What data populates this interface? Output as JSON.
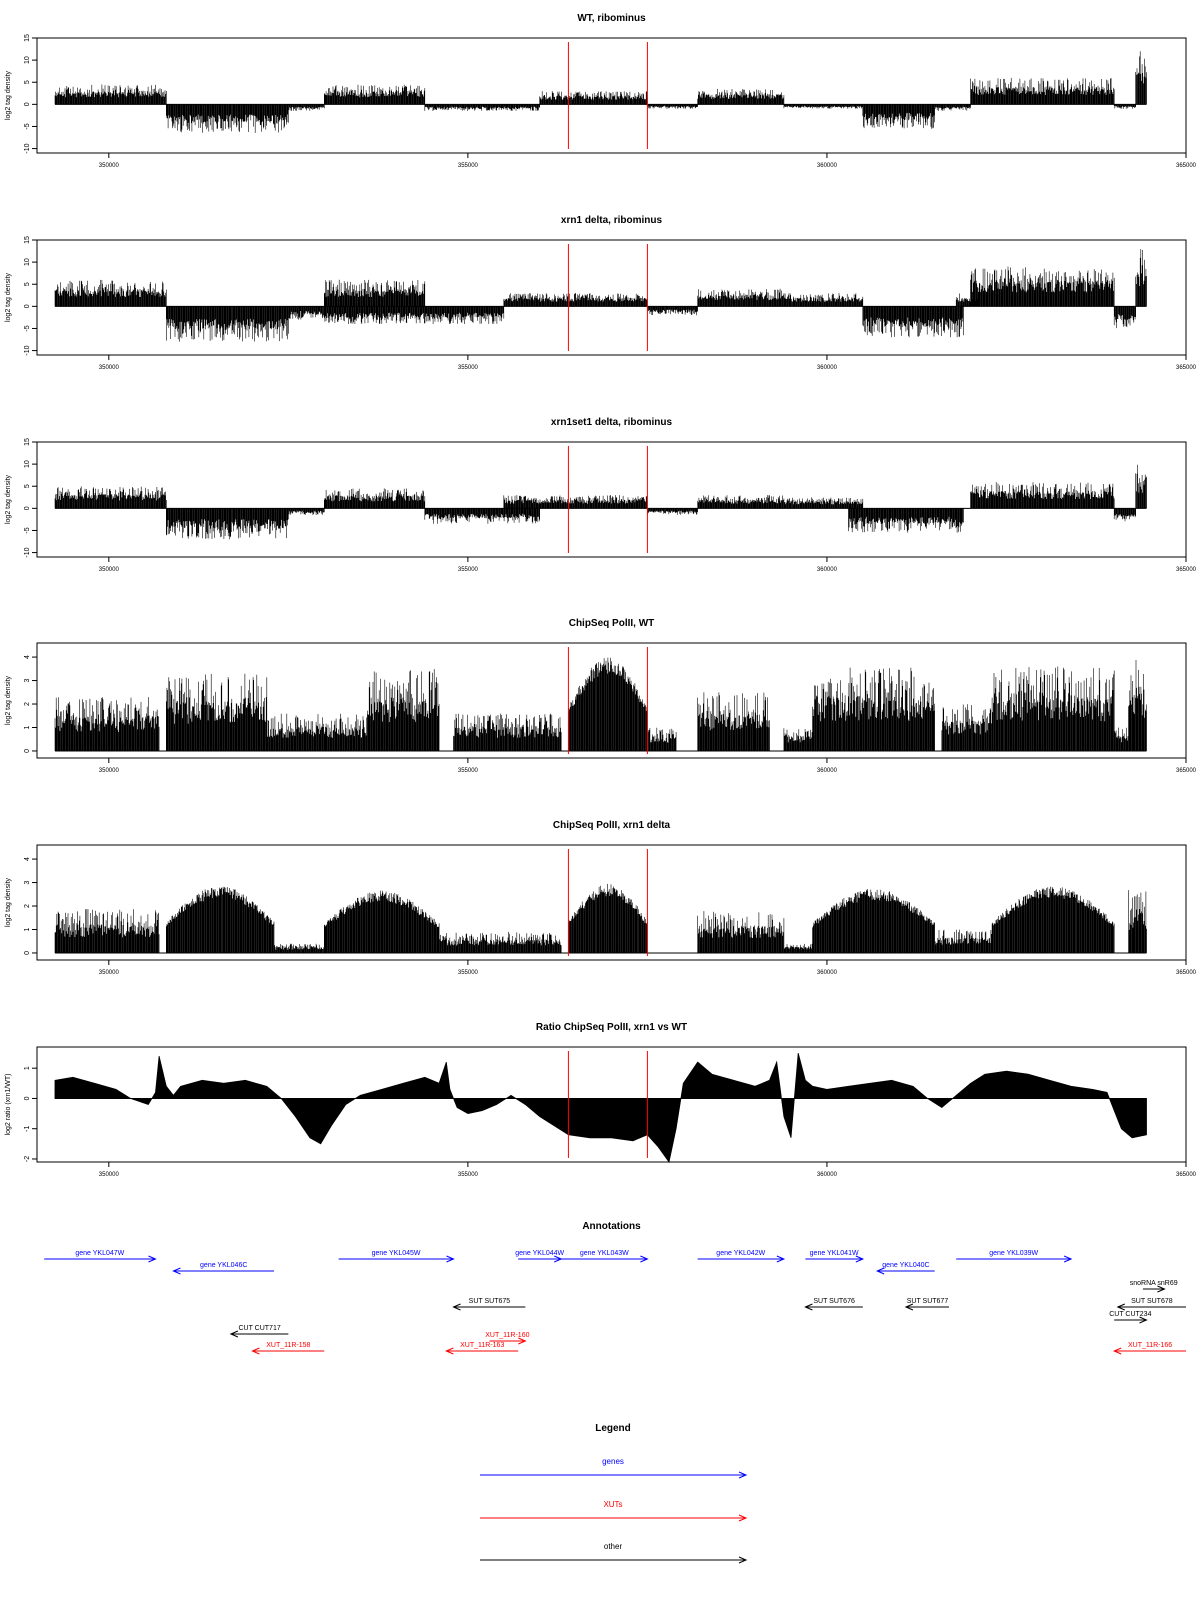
{
  "chart_data": [
    {
      "type": "bar",
      "title": "WT, ribominus",
      "ylabel": "log2 tag density",
      "xlim": [
        349000,
        365000
      ],
      "ylim": [
        -11,
        15
      ],
      "yticks": [
        -10,
        -5,
        0,
        5,
        10,
        15
      ],
      "xticks": [
        350000,
        355000,
        360000,
        365000
      ],
      "markers_x": [
        356400,
        357500
      ],
      "segments": [
        {
          "x0": 349250,
          "x1": 350800,
          "strand": "+",
          "peak": 4.5
        },
        {
          "x0": 350800,
          "x1": 352500,
          "strand": "-",
          "peak": 6.5
        },
        {
          "x0": 352500,
          "x1": 353000,
          "strand": "-",
          "peak": 1.5
        },
        {
          "x0": 353000,
          "x1": 354400,
          "strand": "+",
          "peak": 4.5
        },
        {
          "x0": 354400,
          "x1": 356000,
          "strand": "-",
          "peak": 1.5
        },
        {
          "x0": 356000,
          "x1": 357500,
          "strand": "+",
          "peak": 3.0
        },
        {
          "x0": 357500,
          "x1": 358200,
          "strand": "-",
          "peak": 1.0
        },
        {
          "x0": 358200,
          "x1": 359400,
          "strand": "+",
          "peak": 3.5
        },
        {
          "x0": 359400,
          "x1": 360500,
          "strand": "-",
          "peak": 1.0
        },
        {
          "x0": 360500,
          "x1": 361500,
          "strand": "-",
          "peak": 5.5
        },
        {
          "x0": 361500,
          "x1": 362000,
          "strand": "-",
          "peak": 1.5
        },
        {
          "x0": 362000,
          "x1": 364000,
          "strand": "+",
          "peak": 6.0
        },
        {
          "x0": 364000,
          "x1": 364300,
          "strand": "-",
          "peak": 1.0
        },
        {
          "x0": 364300,
          "x1": 364450,
          "strand": "+",
          "peak": 12.5
        }
      ]
    },
    {
      "type": "bar",
      "title": "xrn1 delta, ribominus",
      "ylabel": "log2 tag density",
      "xlim": [
        349000,
        365000
      ],
      "ylim": [
        -11,
        15
      ],
      "yticks": [
        -10,
        -5,
        0,
        5,
        10,
        15
      ],
      "xticks": [
        350000,
        355000,
        360000,
        365000
      ],
      "markers_x": [
        356400,
        357500
      ],
      "segments": [
        {
          "x0": 349250,
          "x1": 350800,
          "strand": "+",
          "peak": 6.0
        },
        {
          "x0": 350800,
          "x1": 352500,
          "strand": "-",
          "peak": 8.0
        },
        {
          "x0": 352500,
          "x1": 353000,
          "strand": "-",
          "peak": 3.0
        },
        {
          "x0": 353000,
          "x1": 354400,
          "strand": "+",
          "peak": 6.0
        },
        {
          "x0": 353000,
          "x1": 355500,
          "strand": "-",
          "peak": 4.0
        },
        {
          "x0": 355500,
          "x1": 357500,
          "strand": "+",
          "peak": 3.0
        },
        {
          "x0": 357500,
          "x1": 358200,
          "strand": "-",
          "peak": 2.0
        },
        {
          "x0": 358200,
          "x1": 359400,
          "strand": "+",
          "peak": 4.0
        },
        {
          "x0": 359400,
          "x1": 360500,
          "strand": "+",
          "peak": 3.0
        },
        {
          "x0": 360500,
          "x1": 361900,
          "strand": "-",
          "peak": 7.0
        },
        {
          "x0": 361800,
          "x1": 362100,
          "strand": "+",
          "peak": 3.0
        },
        {
          "x0": 362000,
          "x1": 364000,
          "strand": "+",
          "peak": 9.0
        },
        {
          "x0": 364000,
          "x1": 364300,
          "strand": "-",
          "peak": 5.0
        },
        {
          "x0": 364300,
          "x1": 364450,
          "strand": "+",
          "peak": 13.0
        }
      ]
    },
    {
      "type": "bar",
      "title": "xrn1set1 delta, ribominus",
      "ylabel": "log2 tag density",
      "xlim": [
        349000,
        365000
      ],
      "ylim": [
        -11,
        15
      ],
      "yticks": [
        -10,
        -5,
        0,
        5,
        10,
        15
      ],
      "xticks": [
        350000,
        355000,
        360000,
        365000
      ],
      "markers_x": [
        356400,
        357500
      ],
      "segments": [
        {
          "x0": 349250,
          "x1": 350800,
          "strand": "+",
          "peak": 5.0
        },
        {
          "x0": 350800,
          "x1": 352500,
          "strand": "-",
          "peak": 7.0
        },
        {
          "x0": 352500,
          "x1": 353000,
          "strand": "-",
          "peak": 1.5
        },
        {
          "x0": 353000,
          "x1": 354400,
          "strand": "+",
          "peak": 4.5
        },
        {
          "x0": 354400,
          "x1": 356000,
          "strand": "-",
          "peak": 3.5
        },
        {
          "x0": 355500,
          "x1": 357500,
          "strand": "+",
          "peak": 3.0
        },
        {
          "x0": 357500,
          "x1": 358200,
          "strand": "-",
          "peak": 1.5
        },
        {
          "x0": 358200,
          "x1": 359400,
          "strand": "+",
          "peak": 3.0
        },
        {
          "x0": 359400,
          "x1": 360500,
          "strand": "+",
          "peak": 2.5
        },
        {
          "x0": 360300,
          "x1": 361900,
          "strand": "-",
          "peak": 5.5
        },
        {
          "x0": 362000,
          "x1": 364000,
          "strand": "+",
          "peak": 6.0
        },
        {
          "x0": 364000,
          "x1": 364300,
          "strand": "-",
          "peak": 3.0
        },
        {
          "x0": 364300,
          "x1": 364450,
          "strand": "+",
          "peak": 10.0
        }
      ]
    },
    {
      "type": "bar",
      "title": "ChipSeq PolII, WT",
      "ylabel": "log2 tag density",
      "xlim": [
        349000,
        365000
      ],
      "ylim": [
        -0.3,
        4.6
      ],
      "yticks": [
        0,
        1,
        2,
        3,
        4
      ],
      "xticks": [
        350000,
        355000,
        360000,
        365000
      ],
      "markers_x": [
        356400,
        357500
      ],
      "segments": [
        {
          "x0": 349250,
          "x1": 350700,
          "peak": 2.3
        },
        {
          "x0": 350800,
          "x1": 352200,
          "peak": 3.3
        },
        {
          "x0": 352200,
          "x1": 353600,
          "peak": 1.6
        },
        {
          "x0": 353600,
          "x1": 354600,
          "peak": 3.5
        },
        {
          "x0": 354800,
          "x1": 356300,
          "peak": 1.6
        },
        {
          "x0": 356400,
          "x1": 357500,
          "peak": 4.2,
          "dome": true
        },
        {
          "x0": 357500,
          "x1": 357900,
          "peak": 1.0
        },
        {
          "x0": 358200,
          "x1": 359200,
          "peak": 2.5
        },
        {
          "x0": 359400,
          "x1": 359800,
          "peak": 1.0
        },
        {
          "x0": 359800,
          "x1": 361500,
          "peak": 3.6
        },
        {
          "x0": 361600,
          "x1": 362300,
          "peak": 2.0
        },
        {
          "x0": 362300,
          "x1": 364000,
          "peak": 3.6
        },
        {
          "x0": 364000,
          "x1": 364200,
          "peak": 1.0
        },
        {
          "x0": 364200,
          "x1": 364450,
          "peak": 4.0
        }
      ]
    },
    {
      "type": "bar",
      "title": "ChipSeq PolII, xrn1 delta",
      "ylabel": "log2 tag density",
      "xlim": [
        349000,
        365000
      ],
      "ylim": [
        -0.3,
        4.6
      ],
      "yticks": [
        0,
        1,
        2,
        3,
        4
      ],
      "xticks": [
        350000,
        355000,
        360000,
        365000
      ],
      "markers_x": [
        356400,
        357500
      ],
      "segments": [
        {
          "x0": 349250,
          "x1": 350700,
          "peak": 1.9
        },
        {
          "x0": 350800,
          "x1": 352300,
          "peak": 3.0,
          "dome": true
        },
        {
          "x0": 352300,
          "x1": 353000,
          "peak": 0.4
        },
        {
          "x0": 353000,
          "x1": 354600,
          "peak": 2.8,
          "dome": true
        },
        {
          "x0": 354600,
          "x1": 356300,
          "peak": 0.9
        },
        {
          "x0": 356400,
          "x1": 357500,
          "peak": 3.1,
          "dome": true
        },
        {
          "x0": 358200,
          "x1": 359400,
          "peak": 1.8
        },
        {
          "x0": 359400,
          "x1": 359800,
          "peak": 0.4
        },
        {
          "x0": 359800,
          "x1": 361500,
          "peak": 2.9,
          "dome": true
        },
        {
          "x0": 361500,
          "x1": 362300,
          "peak": 1.0
        },
        {
          "x0": 362300,
          "x1": 364000,
          "peak": 3.0,
          "dome": true
        },
        {
          "x0": 364200,
          "x1": 364450,
          "peak": 2.8
        }
      ]
    },
    {
      "type": "area",
      "title": "Ratio ChipSeq PolII, xrn1 vs WT",
      "ylabel": "log2 ratio (xrn1/WT)",
      "xlim": [
        349000,
        365000
      ],
      "ylim": [
        -2.1,
        1.7
      ],
      "yticks": [
        -2,
        -1,
        0,
        1
      ],
      "xticks": [
        350000,
        355000,
        360000,
        365000
      ],
      "markers_x": [
        356400,
        357500
      ],
      "x": [
        349250,
        349500,
        349800,
        350100,
        350300,
        350550,
        350650,
        350700,
        350800,
        350900,
        351000,
        351300,
        351600,
        351900,
        352200,
        352400,
        352600,
        352800,
        352950,
        353100,
        353300,
        353500,
        353800,
        354100,
        354400,
        354600,
        354700,
        354750,
        354850,
        355000,
        355200,
        355400,
        355600,
        355800,
        356000,
        356200,
        356400,
        356700,
        357000,
        357300,
        357500,
        357650,
        357800,
        357900,
        358000,
        358200,
        358400,
        358700,
        359000,
        359200,
        359300,
        359400,
        359500,
        359600,
        359700,
        359800,
        360000,
        360300,
        360600,
        360900,
        361200,
        361400,
        361600,
        361800,
        362000,
        362200,
        362500,
        362800,
        363100,
        363400,
        363700,
        363900,
        364000,
        364100,
        364250,
        364450
      ],
      "y": [
        0.6,
        0.7,
        0.5,
        0.3,
        0.0,
        -0.2,
        0.2,
        1.4,
        0.4,
        0.1,
        0.4,
        0.6,
        0.5,
        0.6,
        0.4,
        0.0,
        -0.6,
        -1.3,
        -1.5,
        -0.9,
        -0.2,
        0.1,
        0.3,
        0.5,
        0.7,
        0.5,
        1.2,
        0.3,
        -0.3,
        -0.5,
        -0.4,
        -0.2,
        0.1,
        -0.2,
        -0.6,
        -0.9,
        -1.2,
        -1.3,
        -1.3,
        -1.4,
        -1.2,
        -1.6,
        -2.1,
        -1.0,
        0.5,
        1.2,
        0.8,
        0.6,
        0.4,
        0.6,
        1.2,
        -0.6,
        -1.3,
        1.5,
        0.6,
        0.4,
        0.3,
        0.4,
        0.5,
        0.6,
        0.4,
        0.0,
        -0.3,
        0.1,
        0.5,
        0.8,
        0.9,
        0.8,
        0.6,
        0.4,
        0.3,
        0.2,
        -0.4,
        -1.0,
        -1.3,
        -1.2
      ]
    }
  ],
  "annotations": {
    "title": "Annotations",
    "items": [
      {
        "label": "gene YKL047W",
        "x1": 349100,
        "x2": 350650,
        "row": 0,
        "dir": "right",
        "color": "#0000ff"
      },
      {
        "label": "gene YKL046C",
        "x1": 350900,
        "x2": 352300,
        "row": 1,
        "dir": "left",
        "color": "#0000ff"
      },
      {
        "label": "gene YKL045W",
        "x1": 353200,
        "x2": 354800,
        "row": 0,
        "dir": "right",
        "color": "#0000ff"
      },
      {
        "label": "gene YKL044W",
        "x1": 355700,
        "x2": 356300,
        "row": 0,
        "dir": "right",
        "color": "#0000ff"
      },
      {
        "label": "gene YKL043W",
        "x1": 356300,
        "x2": 357500,
        "row": 0,
        "dir": "right",
        "color": "#0000ff"
      },
      {
        "label": "gene YKL042W",
        "x1": 358200,
        "x2": 359400,
        "row": 0,
        "dir": "right",
        "color": "#0000ff"
      },
      {
        "label": "gene YKL041W",
        "x1": 359700,
        "x2": 360500,
        "row": 0,
        "dir": "right",
        "color": "#0000ff"
      },
      {
        "label": "gene YKL040C",
        "x1": 360700,
        "x2": 361500,
        "row": 1,
        "dir": "left",
        "color": "#0000ff"
      },
      {
        "label": "gene YKL039W",
        "x1": 361800,
        "x2": 363400,
        "row": 0,
        "dir": "right",
        "color": "#0000ff"
      },
      {
        "label": "snoRNA snR69",
        "x1": 364400,
        "x2": 364700,
        "row": 2,
        "dir": "right",
        "color": "#000000"
      },
      {
        "label": "SUT SUT675",
        "x1": 354800,
        "x2": 355800,
        "row": 3,
        "dir": "left",
        "color": "#000000"
      },
      {
        "label": "SUT SUT676",
        "x1": 359700,
        "x2": 360500,
        "row": 3,
        "dir": "left",
        "color": "#000000"
      },
      {
        "label": "SUT SUT677",
        "x1": 361100,
        "x2": 361700,
        "row": 3,
        "dir": "left",
        "color": "#000000"
      },
      {
        "label": "SUT SUT678",
        "x1": 364050,
        "x2": 365000,
        "row": 3,
        "dir": "left",
        "color": "#000000"
      },
      {
        "label": "CUT CUT234",
        "x1": 364000,
        "x2": 364450,
        "row": 4,
        "dir": "right",
        "color": "#000000"
      },
      {
        "label": "CUT CUT717",
        "x1": 351700,
        "x2": 352500,
        "row": 5,
        "dir": "left",
        "color": "#000000"
      },
      {
        "label": "XUT_11R-160",
        "x1": 355300,
        "x2": 355800,
        "row": 6,
        "dir": "right",
        "color": "#ff0000"
      },
      {
        "label": "XUT_11R-158",
        "x1": 352000,
        "x2": 353000,
        "row": 7,
        "dir": "left",
        "color": "#ff0000"
      },
      {
        "label": "XUT_11R-163",
        "x1": 354700,
        "x2": 355700,
        "row": 7,
        "dir": "left",
        "color": "#ff0000"
      },
      {
        "label": "XUT_11R-166",
        "x1": 364000,
        "x2": 365000,
        "row": 7,
        "dir": "left",
        "color": "#ff0000"
      }
    ]
  },
  "legend": {
    "title": "Legend",
    "items": [
      {
        "label": "genes",
        "color": "#0000ff"
      },
      {
        "label": "XUTs",
        "color": "#ff0000"
      },
      {
        "label": "other",
        "color": "#000000"
      }
    ]
  }
}
